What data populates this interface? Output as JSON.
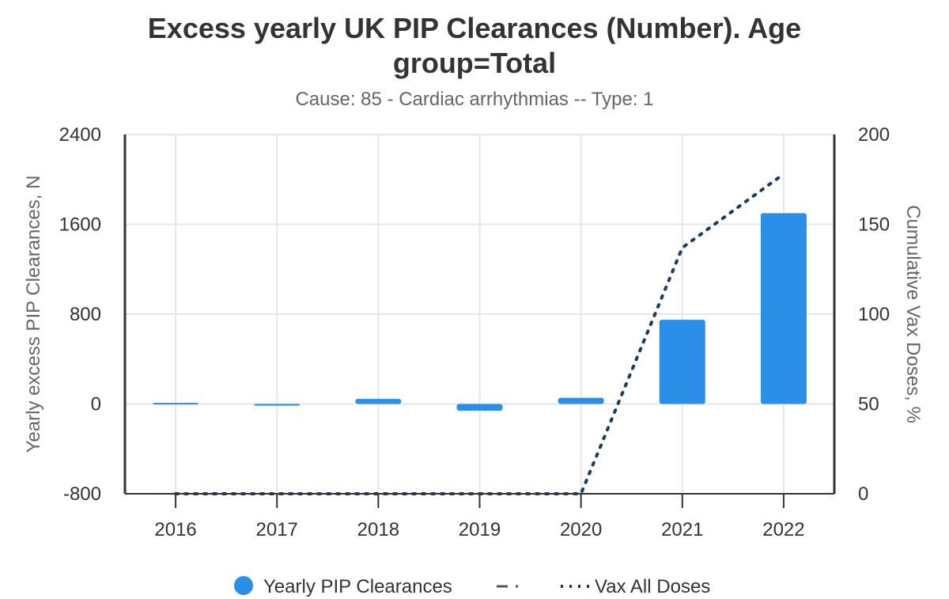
{
  "chart_data": {
    "type": "bar",
    "title": "Excess yearly UK PIP Clearances (Number). Age group=Total",
    "subtitle": "Cause: 85 - Cardiac arrhythmias -- Type: 1",
    "categories": [
      "2016",
      "2017",
      "2018",
      "2019",
      "2020",
      "2021",
      "2022"
    ],
    "series": [
      {
        "name": "Yearly PIP Clearances",
        "type": "bar",
        "axis": "left",
        "color": "#2b8fe8",
        "values": [
          10,
          -15,
          45,
          -60,
          55,
          750,
          1700
        ]
      },
      {
        "name": "Vax All Doses",
        "type": "line",
        "style": "dotted",
        "axis": "right",
        "color": "#1b3a5c",
        "values": [
          0,
          0,
          0,
          0,
          0,
          137,
          178
        ]
      }
    ],
    "legend_extra": {
      "style": "dashdot",
      "color": "#555555"
    },
    "ylabel": "Yearly excess PIP Clearances, N",
    "ylim": [
      -800,
      2400
    ],
    "yticks": [
      "2400",
      "1600",
      "800",
      "0",
      "-800"
    ],
    "y2label": "Cumulative Vax Doses, %",
    "y2lim": [
      0,
      200
    ],
    "y2ticks": [
      "200",
      "150",
      "100",
      "50",
      "0"
    ],
    "grid": true,
    "legend_position": "bottom"
  }
}
